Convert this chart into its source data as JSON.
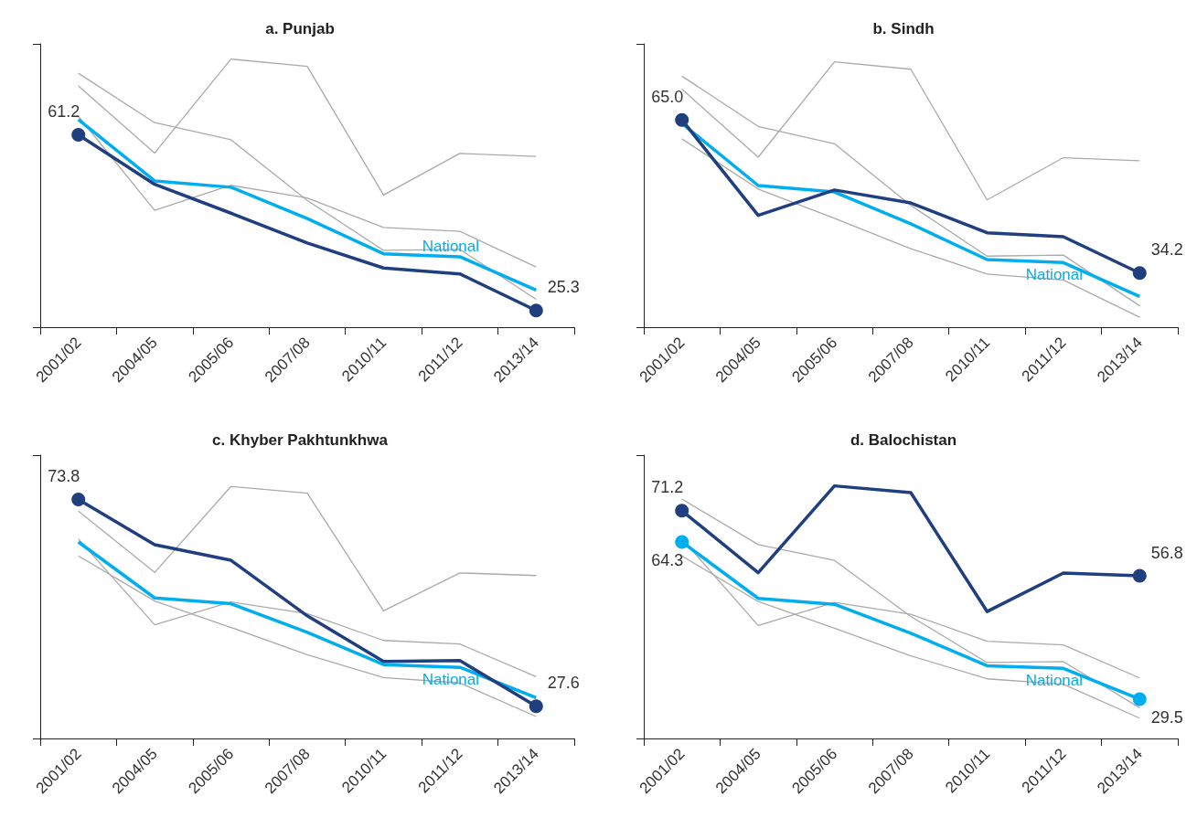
{
  "chart_data": [
    {
      "type": "line",
      "title": "a. Punjab",
      "tick_labels": "x",
      "ylim": [
        21.9,
        79.8
      ],
      "yticks": [
        {
          "value": 21.9,
          "label": null
        },
        {
          "value": 79.8,
          "label": null
        }
      ],
      "categories": [
        "2001/02",
        "2004/05",
        "2005/06",
        "2007/08",
        "2010/11",
        "2011/12",
        "2013/14"
      ],
      "series": [
        {
          "color": "#aaaaaa",
          "values": [
            71.2,
            57.5,
            76.7,
            75.2,
            48.9,
            57.4,
            56.8
          ]
        },
        {
          "color": "#aaaaaa",
          "values": [
            73.8,
            63.7,
            60.2,
            47.8,
            37.6,
            37.8,
            27.6
          ]
        },
        {
          "color": "#aaaaaa",
          "values": [
            65.0,
            45.8,
            50.9,
            48.3,
            42.3,
            41.5,
            34.2
          ]
        },
        {
          "name": "National",
          "color": "#00aeef",
          "values": [
            64.3,
            51.8,
            50.5,
            44.1,
            36.9,
            36.3,
            29.5
          ]
        },
        {
          "color": "#1f3f7f",
          "values": [
            61.2,
            51.1,
            45.2,
            39.1,
            34.0,
            32.8,
            25.3
          ],
          "value_labels": [
            "61.2",
            null,
            null,
            null,
            null,
            null,
            "25.3"
          ]
        }
      ]
    },
    {
      "type": "line",
      "title": "b. Sindh",
      "tick_labels": "x",
      "ylim": [
        23.3,
        80.3
      ],
      "yticks": [
        {
          "value": 23.3,
          "label": null
        },
        {
          "value": 80.3,
          "label": null
        }
      ],
      "categories": [
        "2001/02",
        "2004/05",
        "2005/06",
        "2007/08",
        "2010/11",
        "2011/12",
        "2013/14"
      ],
      "series": [
        {
          "color": "#aaaaaa",
          "values": [
            71.2,
            57.5,
            76.7,
            75.2,
            48.9,
            57.4,
            56.8
          ]
        },
        {
          "color": "#aaaaaa",
          "values": [
            73.8,
            63.7,
            60.2,
            47.8,
            37.6,
            37.8,
            27.6
          ]
        },
        {
          "color": "#aaaaaa",
          "values": [
            61.2,
            51.1,
            45.2,
            39.1,
            34.0,
            32.8,
            25.3
          ]
        },
        {
          "name": "National",
          "color": "#00aeef",
          "values": [
            64.3,
            51.8,
            50.5,
            44.1,
            36.9,
            36.3,
            29.5
          ]
        },
        {
          "color": "#1f3f7f",
          "values": [
            65.0,
            45.8,
            50.9,
            48.3,
            42.3,
            41.5,
            34.2
          ],
          "value_labels": [
            "65.0",
            null,
            null,
            null,
            null,
            null,
            "34.2"
          ]
        }
      ]
    },
    {
      "type": "line",
      "title": "c. Khyber Pakhtunkhwa",
      "tick_labels": "x",
      "ylim": [
        20.4,
        83.7
      ],
      "yticks": [
        {
          "value": 20.4,
          "label": null
        },
        {
          "value": 83.7,
          "label": null
        }
      ],
      "categories": [
        "2001/02",
        "2004/05",
        "2005/06",
        "2007/08",
        "2010/11",
        "2011/12",
        "2013/14"
      ],
      "series": [
        {
          "color": "#aaaaaa",
          "values": [
            71.2,
            57.5,
            76.7,
            75.2,
            48.9,
            57.4,
            56.8
          ]
        },
        {
          "color": "#aaaaaa",
          "values": [
            65.0,
            45.8,
            50.9,
            48.3,
            42.3,
            41.5,
            34.2
          ]
        },
        {
          "color": "#aaaaaa",
          "values": [
            61.2,
            51.1,
            45.2,
            39.1,
            34.0,
            32.8,
            25.3
          ]
        },
        {
          "name": "National",
          "color": "#00aeef",
          "values": [
            64.3,
            51.8,
            50.5,
            44.1,
            36.9,
            36.3,
            29.5
          ]
        },
        {
          "color": "#1f3f7f",
          "values": [
            73.8,
            63.7,
            60.2,
            47.8,
            37.6,
            37.8,
            27.6
          ],
          "value_labels": [
            "73.8",
            null,
            null,
            null,
            null,
            null,
            "27.6"
          ]
        }
      ]
    },
    {
      "type": "line",
      "title": "d. Balochistan",
      "tick_labels": "x",
      "ylim": [
        20.8,
        83.5
      ],
      "yticks": [
        {
          "value": 20.8,
          "label": null
        },
        {
          "value": 83.5,
          "label": null
        }
      ],
      "categories": [
        "2001/02",
        "2004/05",
        "2005/06",
        "2007/08",
        "2010/11",
        "2011/12",
        "2013/14"
      ],
      "series": [
        {
          "color": "#aaaaaa",
          "values": [
            73.8,
            63.7,
            60.2,
            47.8,
            37.6,
            37.8,
            27.6
          ]
        },
        {
          "color": "#aaaaaa",
          "values": [
            65.0,
            45.8,
            50.9,
            48.3,
            42.3,
            41.5,
            34.2
          ]
        },
        {
          "color": "#aaaaaa",
          "values": [
            61.2,
            51.1,
            45.2,
            39.1,
            34.0,
            32.8,
            25.3
          ]
        },
        {
          "name": "National",
          "color": "#00aeef",
          "values": [
            64.3,
            51.8,
            50.5,
            44.1,
            36.9,
            36.3,
            29.5
          ],
          "value_labels": [
            "64.3",
            null,
            null,
            null,
            null,
            null,
            "29.5"
          ]
        },
        {
          "color": "#1f3f7f",
          "values": [
            71.2,
            57.5,
            76.7,
            75.2,
            48.9,
            57.4,
            56.8
          ],
          "value_labels": [
            "71.2",
            null,
            null,
            null,
            null,
            null,
            "56.8"
          ]
        }
      ]
    }
  ]
}
